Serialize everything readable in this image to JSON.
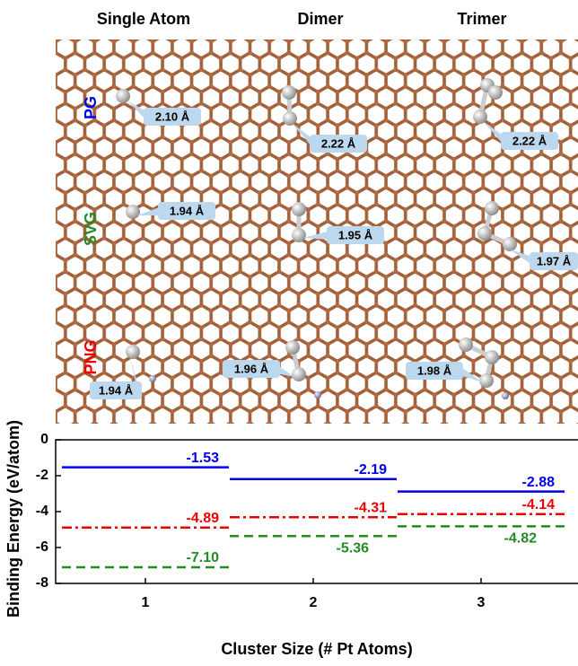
{
  "figure": {
    "column_titles": [
      "Single Atom",
      "Dimer",
      "Trimer"
    ],
    "bond_labels": [
      [
        "2.10 Å",
        "2.22 Å",
        "2.22 Å"
      ],
      [
        "1.94 Å",
        "1.95 Å",
        "1.97 Å"
      ],
      [
        "1.94 Å",
        "1.96 Å",
        "1.98 Å"
      ]
    ]
  },
  "chart_data": {
    "type": "level",
    "y_label": "Binding Energy (eV/atom)",
    "x_label": "Cluster Size (# Pt Atoms)",
    "categories": [
      "1",
      "2",
      "3"
    ],
    "ylim": [
      -8,
      0
    ],
    "yticks": [
      0,
      -2,
      -4,
      -6,
      -8
    ],
    "series": [
      {
        "name": "PG",
        "color": "#0000ee",
        "style": "solid",
        "values": [
          -1.53,
          -2.19,
          -2.88
        ],
        "value_labels": [
          "-1.53",
          "-2.19",
          "-2.88"
        ]
      },
      {
        "name": "SVG",
        "color": "#228b22",
        "style": "dashed",
        "values": [
          -7.1,
          -5.36,
          -4.82
        ],
        "value_labels": [
          "-7.10",
          "-5.36",
          "-4.82"
        ]
      },
      {
        "name": "PNG",
        "color": "#ee0000",
        "style": "dashdot",
        "values": [
          -4.89,
          -4.31,
          -4.14
        ],
        "value_labels": [
          "-4.89",
          "-4.31",
          "-4.14"
        ]
      }
    ]
  }
}
